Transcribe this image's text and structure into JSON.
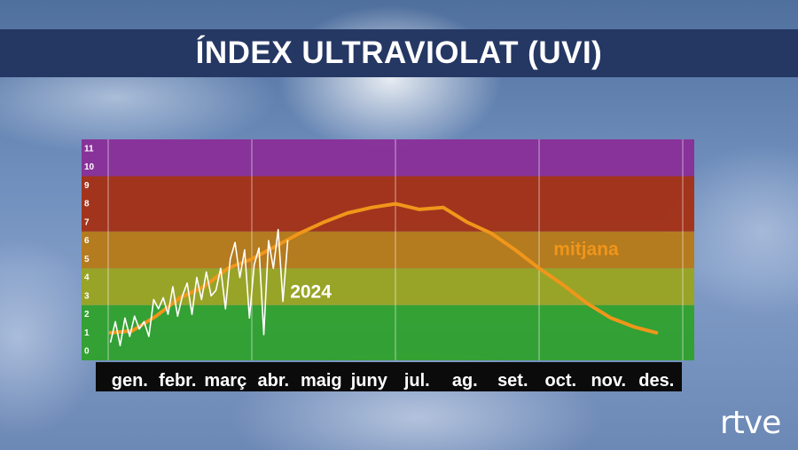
{
  "header": {
    "title": "ÍNDEX ULTRAVIOLAT (UVI)"
  },
  "brand": {
    "logo_text": "rtve"
  },
  "chart_data": {
    "type": "line",
    "title": "ÍNDEX ULTRAVIOLAT (UVI)",
    "xlabel": "",
    "ylabel": "",
    "ylim": [
      0,
      12
    ],
    "y_ticks": [
      "0",
      "1",
      "2",
      "3",
      "4",
      "5",
      "6",
      "7",
      "8",
      "9",
      "10",
      "11"
    ],
    "month_labels": [
      "gen.",
      "febr.",
      "març",
      "abr.",
      "maig",
      "juny",
      "jul.",
      "ag.",
      "set.",
      "oct.",
      "nov.",
      "des."
    ],
    "bands": [
      {
        "from": 0,
        "to": 3,
        "color": "#2ea12a"
      },
      {
        "from": 3,
        "to": 5,
        "color": "#9aa51c"
      },
      {
        "from": 5,
        "to": 7,
        "color": "#b87912"
      },
      {
        "from": 7,
        "to": 10,
        "color": "#a62d10"
      },
      {
        "from": 10,
        "to": 12,
        "color": "#8a2c97"
      }
    ],
    "series": [
      {
        "name": "mitjana",
        "color": "#f0961a",
        "x": [
          0.05,
          0.5,
          1.0,
          1.5,
          2.0,
          2.5,
          3.0,
          3.5,
          4.0,
          4.5,
          5.0,
          5.5,
          6.0,
          6.5,
          7.0,
          7.5,
          8.0,
          8.5,
          9.0,
          9.5,
          10.0,
          10.5,
          11.0,
          11.45
        ],
        "values": [
          1.5,
          1.6,
          2.4,
          3.4,
          4.0,
          5.0,
          5.5,
          6.2,
          6.9,
          7.5,
          8.0,
          8.3,
          8.5,
          8.2,
          8.3,
          7.5,
          6.9,
          6.0,
          5.0,
          4.1,
          3.1,
          2.3,
          1.8,
          1.5
        ]
      },
      {
        "name": "2024",
        "color": "#ffffff",
        "x": [
          0.05,
          0.15,
          0.25,
          0.35,
          0.45,
          0.55,
          0.65,
          0.75,
          0.85,
          0.95,
          1.05,
          1.15,
          1.25,
          1.35,
          1.45,
          1.55,
          1.65,
          1.75,
          1.85,
          1.95,
          2.05,
          2.15,
          2.25,
          2.35,
          2.45,
          2.55,
          2.65,
          2.75,
          2.85,
          2.95,
          3.05,
          3.15,
          3.25,
          3.35,
          3.45,
          3.55,
          3.65,
          3.75
        ],
        "values": [
          1.0,
          2.1,
          0.8,
          2.3,
          1.3,
          2.4,
          1.7,
          2.1,
          1.3,
          3.3,
          2.8,
          3.4,
          2.5,
          4.0,
          2.4,
          3.5,
          4.2,
          2.5,
          4.5,
          3.3,
          4.8,
          3.5,
          3.8,
          5.0,
          2.8,
          5.5,
          6.4,
          4.5,
          6.0,
          2.3,
          5.2,
          6.1,
          1.4,
          6.5,
          5.0,
          7.1,
          3.2,
          6.5
        ]
      }
    ],
    "annotations": [
      {
        "text": "2024",
        "x": 3.8,
        "y": 3.4,
        "color": "#ffffff"
      },
      {
        "text": "mitjana",
        "x": 9.3,
        "y": 5.7,
        "color": "#f0961a"
      }
    ]
  }
}
